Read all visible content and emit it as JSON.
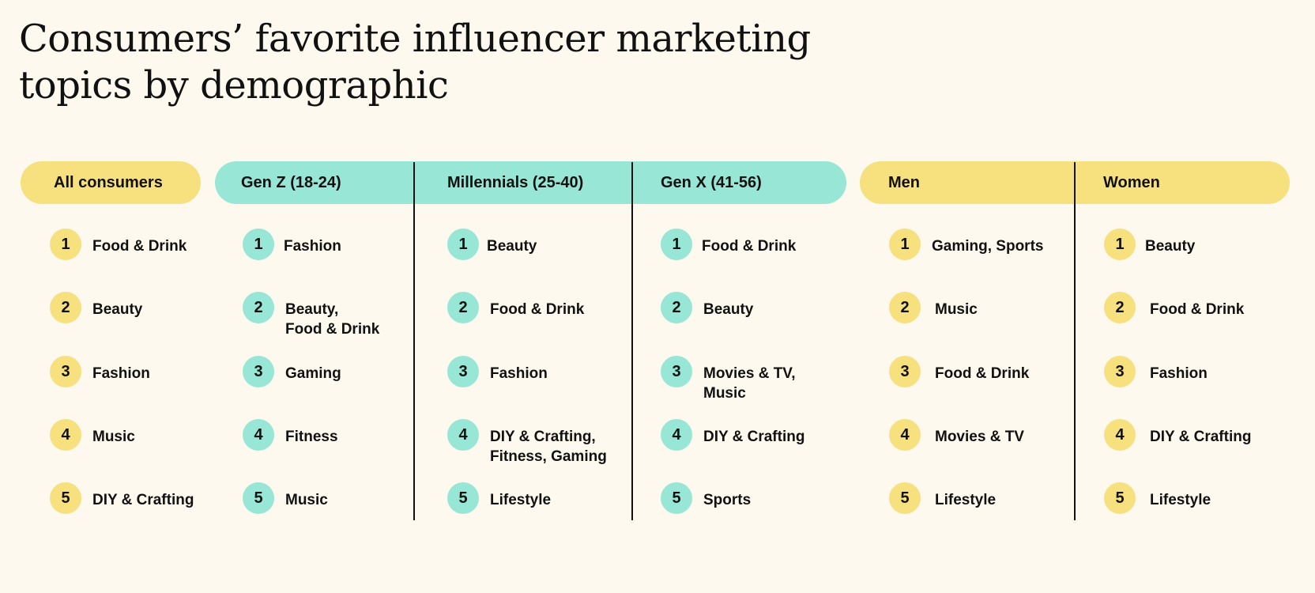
{
  "title": {
    "line1": "Consumers’ favorite influencer marketing",
    "line2": "topics by demographic"
  },
  "colors": {
    "yellow": "#f7e07e",
    "teal": "#98e6d5"
  },
  "columns": [
    {
      "header": "All consumers",
      "color": "yellow",
      "items": [
        "Food & Drink",
        "Beauty",
        "Fashion",
        "Music",
        "DIY & Crafting"
      ]
    },
    {
      "header": "Gen Z (18-24)",
      "color": "teal",
      "items": [
        "Fashion",
        "Beauty,\nFood & Drink",
        "Gaming",
        "Fitness",
        "Music"
      ]
    },
    {
      "header": "Millennials (25-40)",
      "color": "teal",
      "items": [
        "Beauty",
        "Food & Drink",
        "Fashion",
        "DIY & Crafting,\nFitness, Gaming",
        "Lifestyle"
      ]
    },
    {
      "header": "Gen X (41-56)",
      "color": "teal",
      "items": [
        "Food & Drink",
        "Beauty",
        "Movies & TV,\nMusic",
        "DIY & Crafting",
        "Sports"
      ]
    },
    {
      "header": "Men",
      "color": "yellow",
      "items": [
        "Gaming, Sports",
        "Music",
        "Food & Drink",
        "Movies & TV",
        "Lifestyle"
      ]
    },
    {
      "header": "Women",
      "color": "yellow",
      "items": [
        "Beauty",
        "Food & Drink",
        "Fashion",
        "DIY & Crafting",
        "Lifestyle"
      ]
    }
  ],
  "ranks": [
    "1",
    "2",
    "3",
    "4",
    "5"
  ]
}
